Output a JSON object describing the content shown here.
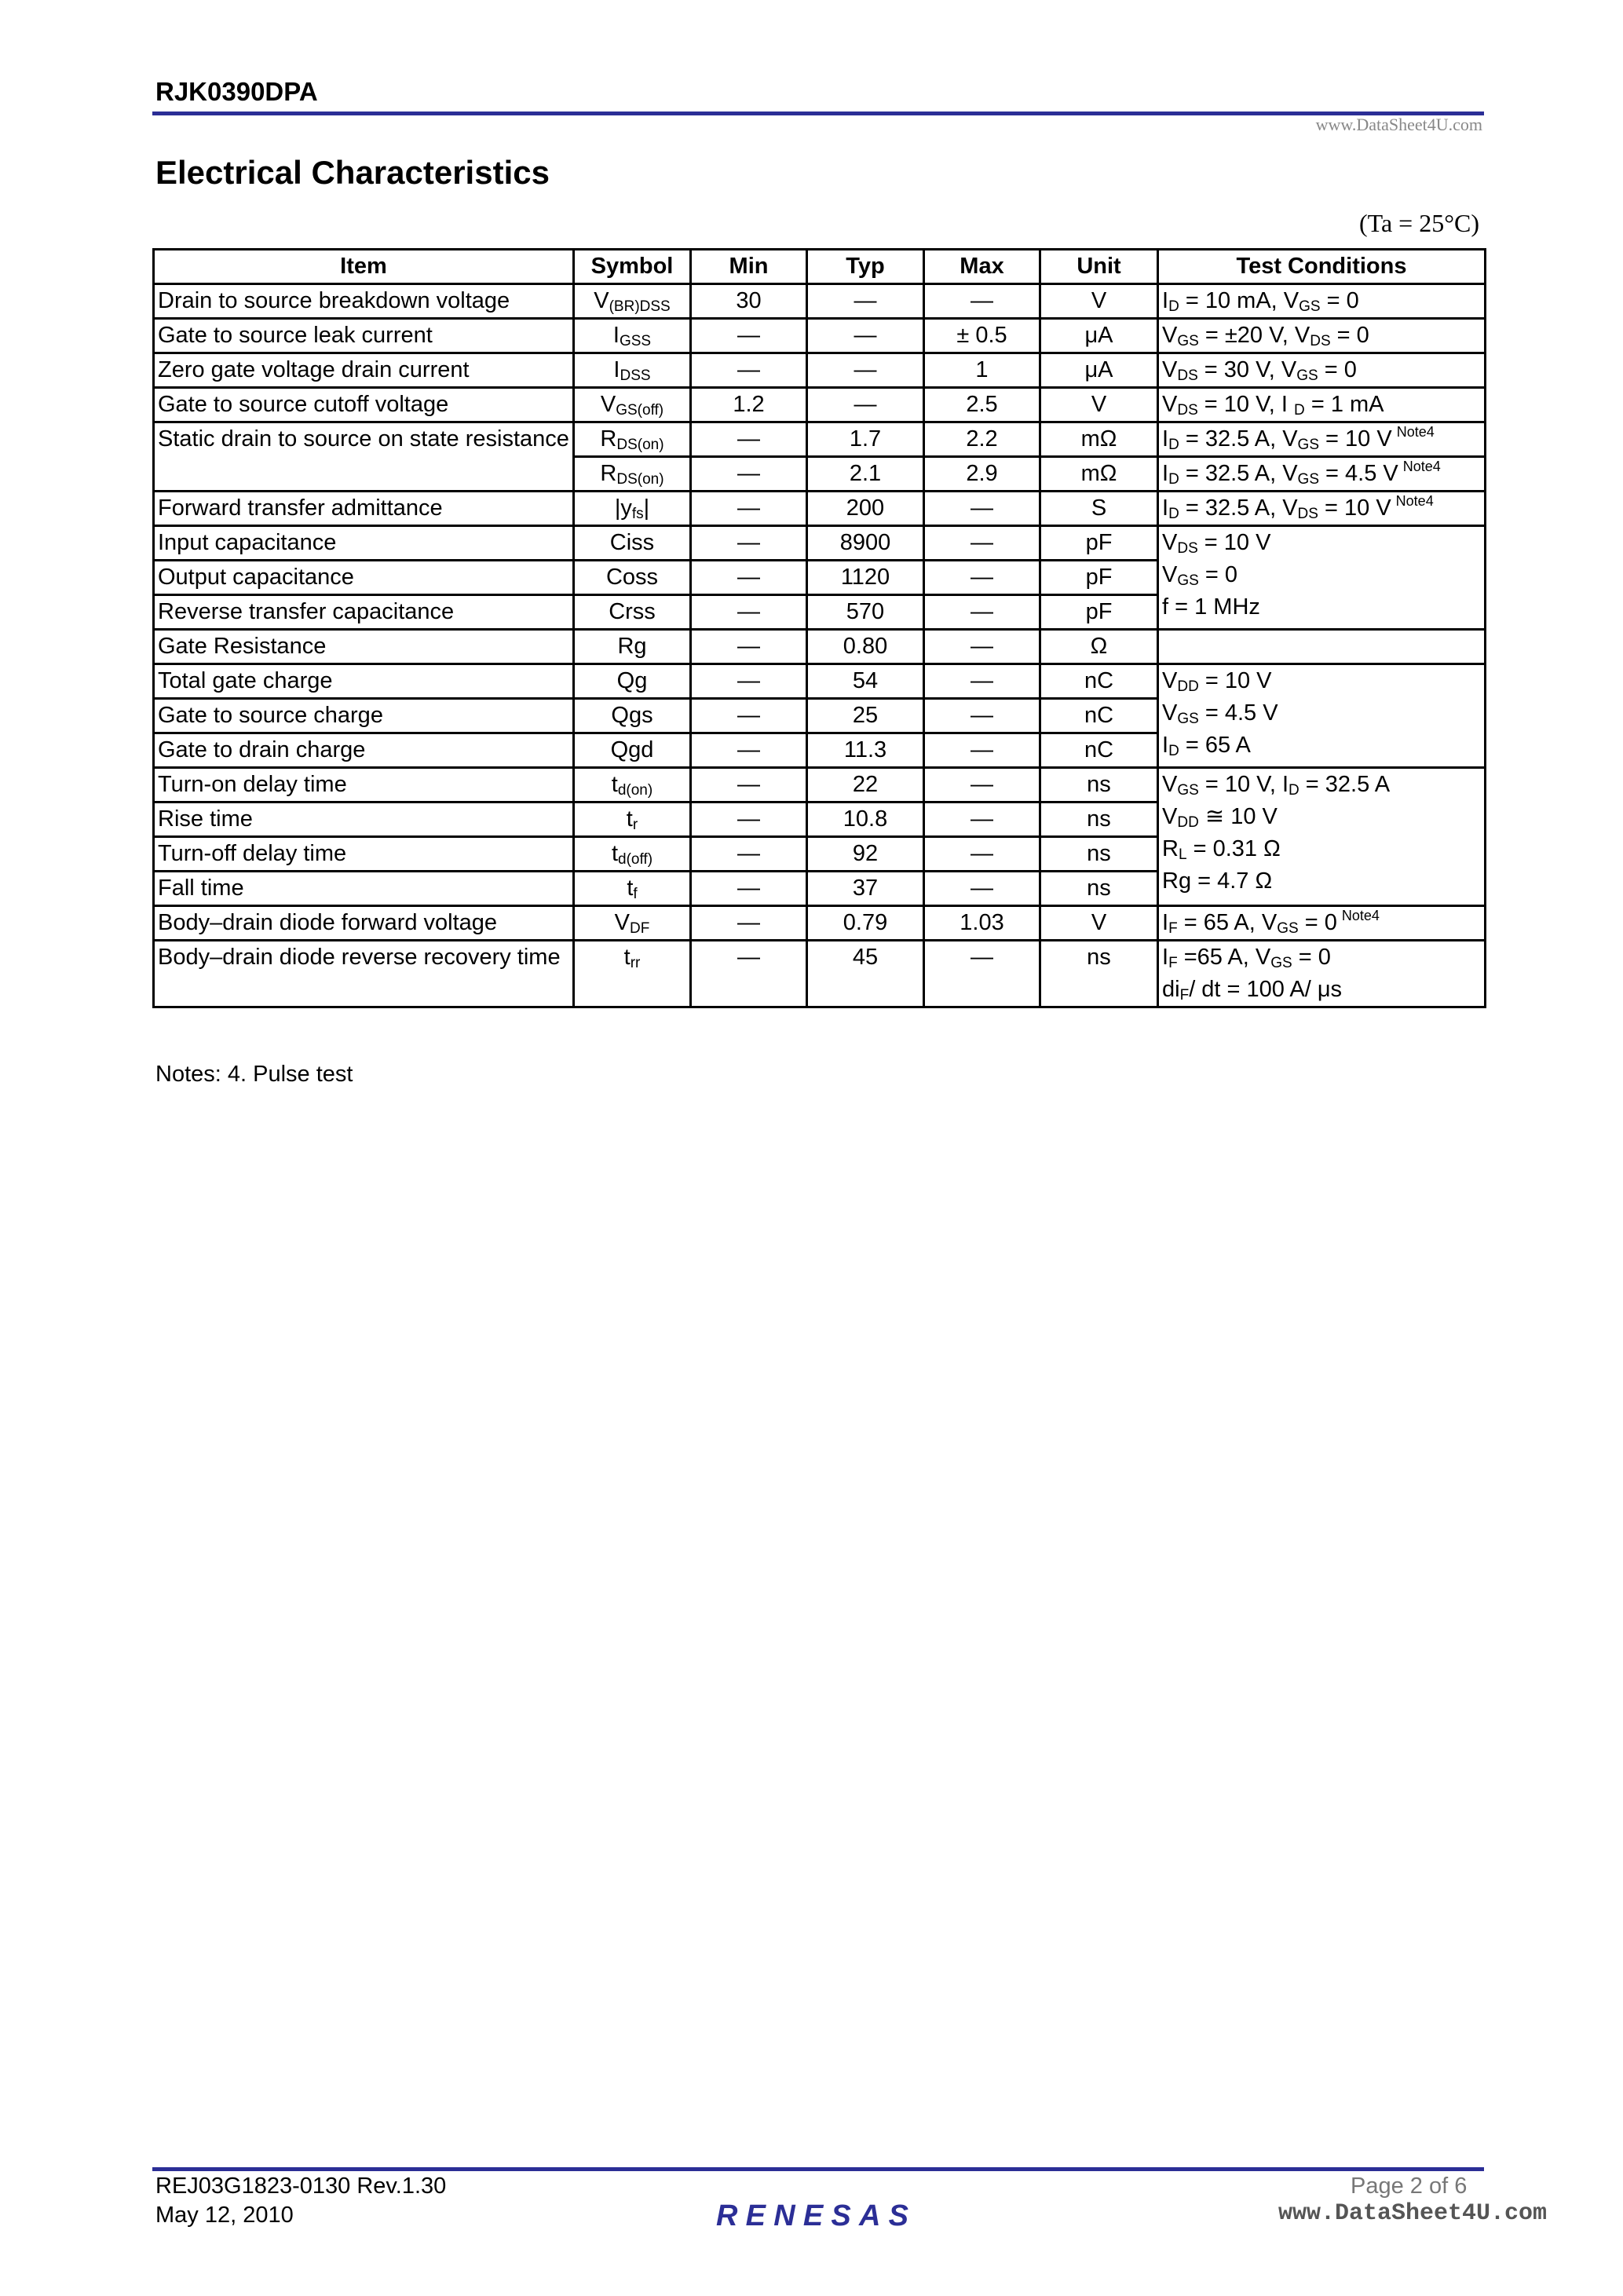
{
  "header": {
    "part_number": "RJK0390DPA",
    "watermark": "www.DataSheet4U.com"
  },
  "title": "Electrical Characteristics",
  "ambient": "(Ta = 25°C)",
  "colors": {
    "rule": "#2b2e96",
    "logo": "#2b2e96"
  },
  "table": {
    "columns": [
      "Item",
      "Symbol",
      "Min",
      "Typ",
      "Max",
      "Unit",
      "Test Conditions"
    ],
    "rows": [
      {
        "item": "Drain to source breakdown voltage",
        "sym": [
          "V",
          "(BR)DSS"
        ],
        "min": "30",
        "typ": "—",
        "max": "—",
        "unit": "V",
        "cond": [
          [
            "I",
            {
              "s": "D"
            },
            " = 10 mA, V",
            {
              "s": "GS"
            },
            " = 0"
          ]
        ]
      },
      {
        "item": "Gate to source leak current",
        "sym": [
          "I",
          "GSS"
        ],
        "min": "—",
        "typ": "—",
        "max": "± 0.5",
        "unit": "μA",
        "cond": [
          [
            "V",
            {
              "s": "GS"
            },
            " = ±20 V, V",
            {
              "s": "DS"
            },
            " = 0"
          ]
        ]
      },
      {
        "item": "Zero gate voltage drain current",
        "sym": [
          "I",
          "DSS"
        ],
        "min": "—",
        "typ": "—",
        "max": "1",
        "unit": "μA",
        "cond": [
          [
            "V",
            {
              "s": "DS"
            },
            " = 30 V, V",
            {
              "s": "GS"
            },
            " = 0"
          ]
        ]
      },
      {
        "item": "Gate to source cutoff voltage",
        "sym": [
          "V",
          "GS(off)"
        ],
        "min": "1.2",
        "typ": "—",
        "max": "2.5",
        "unit": "V",
        "cond": [
          [
            "V",
            {
              "s": "DS"
            },
            " = 10 V,  I ",
            {
              "s": "D"
            },
            " = 1 mA"
          ]
        ]
      },
      {
        "item": "Static drain to source on state resistance",
        "itemspan": 2,
        "sym": [
          "R",
          "DS(on)"
        ],
        "min": "—",
        "typ": "1.7",
        "max": "2.2",
        "unit": "mΩ",
        "cond": [
          [
            "I",
            {
              "s": "D"
            },
            " = 32.5 A, V",
            {
              "s": "GS"
            },
            " = 10 V",
            {
              "n": "Note4"
            }
          ]
        ]
      },
      {
        "noitem": true,
        "sym": [
          "R",
          "DS(on)"
        ],
        "min": "—",
        "typ": "2.1",
        "max": "2.9",
        "unit": "mΩ",
        "cond": [
          [
            "I",
            {
              "s": "D"
            },
            " = 32.5 A, V",
            {
              "s": "GS"
            },
            " = 4.5 V",
            {
              "n": "Note4"
            }
          ]
        ]
      },
      {
        "item": "Forward transfer admittance",
        "sym": [
          "|y",
          "fs",
          "|"
        ],
        "min": "—",
        "typ": "200",
        "max": "—",
        "unit": "S",
        "cond": [
          [
            "I",
            {
              "s": "D"
            },
            " = 32.5 A, V",
            {
              "s": "DS"
            },
            " = 10 V",
            {
              "n": "Note4"
            }
          ]
        ]
      },
      {
        "item": "Input capacitance",
        "sym": [
          "Ciss"
        ],
        "min": "—",
        "typ": "8900",
        "max": "—",
        "unit": "pF",
        "condspan": 3,
        "cond": [
          [
            "V",
            {
              "s": "DS"
            },
            " = 10 V"
          ],
          [
            "V",
            {
              "s": "GS"
            },
            " = 0"
          ],
          [
            "f = 1 MHz"
          ]
        ]
      },
      {
        "item": "Output capacitance",
        "sym": [
          "Coss"
        ],
        "min": "—",
        "typ": "1120",
        "max": "—",
        "unit": "pF"
      },
      {
        "item": "Reverse transfer capacitance",
        "sym": [
          "Crss"
        ],
        "min": "—",
        "typ": "570",
        "max": "—",
        "unit": "pF"
      },
      {
        "item": "Gate Resistance",
        "sym": [
          "Rg"
        ],
        "min": "—",
        "typ": "0.80",
        "max": "—",
        "unit": "Ω",
        "cond": []
      },
      {
        "item": "Total gate charge",
        "sym": [
          "Qg"
        ],
        "min": "—",
        "typ": "54",
        "max": "—",
        "unit": "nC",
        "condspan": 3,
        "cond": [
          [
            "V",
            {
              "s": "DD"
            },
            " = 10 V"
          ],
          [
            "V",
            {
              "s": "GS"
            },
            " = 4.5 V"
          ],
          [
            "I",
            {
              "s": "D"
            },
            " = 65 A"
          ]
        ]
      },
      {
        "item": "Gate to source charge",
        "sym": [
          "Qgs"
        ],
        "min": "—",
        "typ": "25",
        "max": "—",
        "unit": "nC"
      },
      {
        "item": "Gate to drain charge",
        "sym": [
          "Qgd"
        ],
        "min": "—",
        "typ": "11.3",
        "max": "—",
        "unit": "nC"
      },
      {
        "item": "Turn-on delay time",
        "sym": [
          "t",
          "d(on)"
        ],
        "min": "—",
        "typ": "22",
        "max": "—",
        "unit": "ns",
        "condspan": 4,
        "cond": [
          [
            "V",
            {
              "s": "GS"
            },
            " = 10 V, I",
            {
              "s": "D"
            },
            " = 32.5 A"
          ],
          [
            "V",
            {
              "s": "DD"
            },
            " ≅ 10 V"
          ],
          [
            "R",
            {
              "s": "L"
            },
            " = 0.31 Ω"
          ],
          [
            "Rg = 4.7 Ω"
          ]
        ]
      },
      {
        "item": "Rise time",
        "sym": [
          "t",
          "r"
        ],
        "min": "—",
        "typ": "10.8",
        "max": "—",
        "unit": "ns"
      },
      {
        "item": "Turn-off delay time",
        "sym": [
          "t",
          "d(off)"
        ],
        "min": "—",
        "typ": "92",
        "max": "—",
        "unit": "ns"
      },
      {
        "item": "Fall time",
        "sym": [
          "t",
          "f"
        ],
        "min": "—",
        "typ": "37",
        "max": "—",
        "unit": "ns"
      },
      {
        "item": "Body–drain diode forward voltage",
        "sym": [
          "V",
          "DF"
        ],
        "min": "—",
        "typ": "0.79",
        "max": "1.03",
        "unit": "V",
        "cond": [
          [
            "I",
            {
              "s": "F"
            },
            " = 65 A, V",
            {
              "s": "GS"
            },
            " = 0",
            {
              "n": "Note4"
            }
          ]
        ]
      },
      {
        "item": "Body–drain diode reverse recovery time",
        "sym": [
          "t",
          "rr"
        ],
        "min": "—",
        "typ": "45",
        "max": "—",
        "unit": "ns",
        "cond": [
          [
            "I",
            {
              "s": "F"
            },
            " =65 A, V",
            {
              "s": "GS"
            },
            " = 0"
          ],
          [
            "di",
            {
              "s": "F"
            },
            "/ dt  = 100 A/ μs"
          ]
        ]
      }
    ]
  },
  "notes": "Notes:  4.   Pulse test",
  "footer": {
    "doc_number": "REJ03G1823-0130  Rev.1.30",
    "date": "May 12, 2010",
    "page": "Page 2 of 6",
    "logo": "RENESAS",
    "watermark": "www.DataSheet4U.com"
  }
}
